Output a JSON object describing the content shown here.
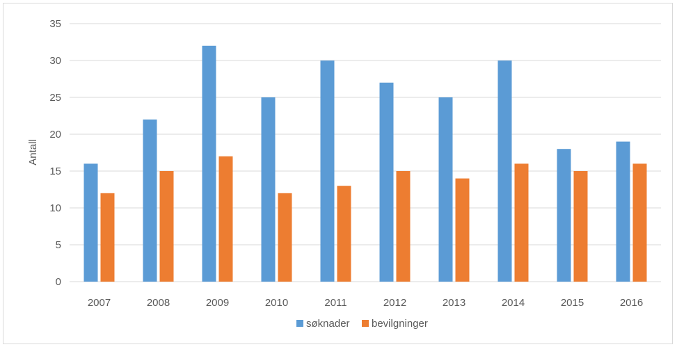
{
  "chart_data": {
    "type": "bar",
    "title": "",
    "xlabel": "",
    "ylabel": "Antall",
    "ylim": [
      0,
      35
    ],
    "yticks": [
      "0",
      "5",
      "10",
      "15",
      "20",
      "25",
      "30",
      "35"
    ],
    "grid": "horizontal",
    "legend_position": "bottom",
    "categories": [
      "2007",
      "2008",
      "2009",
      "2010",
      "2011",
      "2012",
      "2013",
      "2014",
      "2015",
      "2016"
    ],
    "series": [
      {
        "name": "søknader",
        "color": "#5b9bd5",
        "values": [
          16,
          22,
          32,
          25,
          30,
          27,
          25,
          30,
          18,
          19
        ]
      },
      {
        "name": "bevilgninger",
        "color": "#ed7d31",
        "values": [
          12,
          15,
          17,
          12,
          13,
          15,
          14,
          16,
          15,
          16
        ]
      }
    ]
  }
}
